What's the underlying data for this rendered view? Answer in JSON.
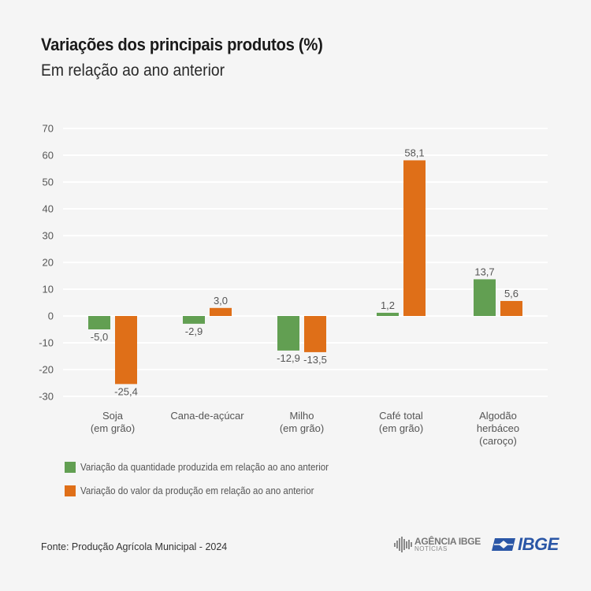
{
  "header": {
    "title": "Variações dos principais produtos (%)",
    "subtitle": "Em relação ao ano anterior"
  },
  "chart_data": {
    "type": "bar",
    "title": "Variações dos principais produtos (%)",
    "subtitle": "Em relação ao ano anterior",
    "xlabel": "",
    "ylabel": "",
    "ylim": [
      -30,
      70
    ],
    "yticks": [
      70,
      60,
      50,
      40,
      30,
      20,
      10,
      0,
      -10,
      -20,
      -30
    ],
    "grid": true,
    "legend_position": "bottom-left",
    "categories": [
      [
        "Soja",
        "(em grão)"
      ],
      [
        "Cana-de-açúcar"
      ],
      [
        "Milho",
        "(em grão)"
      ],
      [
        "Café total",
        "(em grão)"
      ],
      [
        "Algodão",
        "herbáceo",
        "(caroço)"
      ]
    ],
    "series": [
      {
        "name": "Variação da quantidade produzida em relação ao ano anterior",
        "color": "#629f52",
        "values": [
          -5.0,
          -2.9,
          -12.9,
          1.2,
          13.7
        ],
        "labels": [
          "-5,0",
          "-2,9",
          "-12,9",
          "1,2",
          "13,7"
        ]
      },
      {
        "name": "Variação do valor da produção em relação ao ano anterior",
        "color": "#df6f18",
        "values": [
          -25.4,
          3.0,
          -13.5,
          58.1,
          5.6
        ],
        "labels": [
          "-25,4",
          "3,0",
          "-13,5",
          "58,1",
          "5,6"
        ]
      }
    ]
  },
  "footer": {
    "source": "Fonte: Produção Agrícola Municipal - 2024",
    "agencia_main": "AGÊNCIA IBGE",
    "agencia_sub": "NOTÍCIAS",
    "ibge_logo": "IBGE"
  }
}
